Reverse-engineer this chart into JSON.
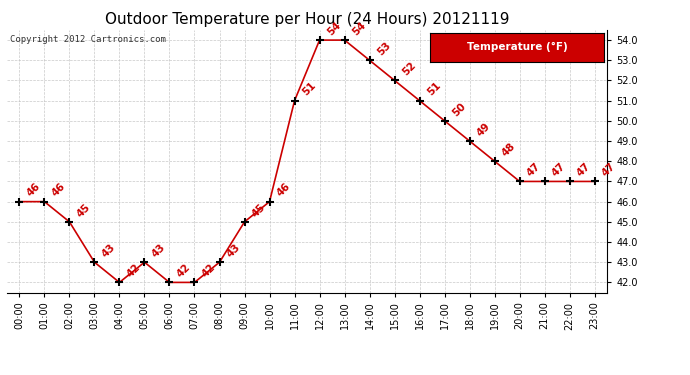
{
  "title": "Outdoor Temperature per Hour (24 Hours) 20121119",
  "copyright_text": "Copyright 2012 Cartronics.com",
  "legend_label": "Temperature (°F)",
  "hours": [
    0,
    1,
    2,
    3,
    4,
    5,
    6,
    7,
    8,
    9,
    10,
    11,
    12,
    13,
    14,
    15,
    16,
    17,
    18,
    19,
    20,
    21,
    22,
    23
  ],
  "temps": [
    46,
    46,
    45,
    43,
    42,
    43,
    42,
    42,
    43,
    45,
    46,
    51,
    54,
    54,
    53,
    52,
    51,
    50,
    49,
    48,
    47,
    47,
    47,
    47
  ],
  "ylim": [
    41.5,
    54.5
  ],
  "yticks": [
    42.0,
    43.0,
    44.0,
    45.0,
    46.0,
    47.0,
    48.0,
    49.0,
    50.0,
    51.0,
    52.0,
    53.0,
    54.0
  ],
  "line_color": "#cc0000",
  "marker_color": "#000000",
  "label_color": "#cc0000",
  "bg_color": "#ffffff",
  "grid_color": "#bbbbbb",
  "title_fontsize": 11,
  "label_fontsize": 7.5,
  "copyright_fontsize": 6.5,
  "tick_fontsize": 7,
  "ytick_fontsize": 7,
  "legend_bg": "#cc0000",
  "legend_fg": "#ffffff",
  "legend_fontsize": 7.5
}
